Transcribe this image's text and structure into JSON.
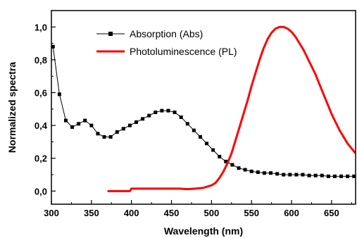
{
  "chart_data": {
    "type": "line",
    "xlabel": "Wavelength (nm)",
    "ylabel": "Normalized spectra",
    "xlim": [
      300,
      680
    ],
    "ylim": [
      -0.08,
      1.1
    ],
    "x_ticks": [
      300,
      350,
      400,
      450,
      500,
      550,
      600,
      650
    ],
    "x_tick_labels": [
      "300",
      "350",
      "400",
      "450",
      "500",
      "550",
      "600",
      "650"
    ],
    "y_ticks": [
      0.0,
      0.2,
      0.4,
      0.6,
      0.8,
      1.0
    ],
    "y_tick_labels": [
      "0,0",
      "0,2",
      "0,4",
      "0,6",
      "0,8",
      "1,0"
    ],
    "grid": false,
    "legend_position": "top-center",
    "series": [
      {
        "name": "Absorption (Abs)",
        "color": "#000000",
        "marker": "square",
        "x": [
          302,
          310,
          318,
          326,
          334,
          342,
          350,
          358,
          366,
          374,
          382,
          390,
          398,
          406,
          414,
          422,
          430,
          438,
          446,
          454,
          462,
          470,
          478,
          486,
          494,
          502,
          510,
          518,
          526,
          534,
          542,
          550,
          558,
          566,
          574,
          582,
          590,
          598,
          606,
          614,
          622,
          630,
          638,
          646,
          654,
          662,
          670,
          678
        ],
        "y": [
          0.88,
          0.59,
          0.43,
          0.39,
          0.41,
          0.43,
          0.4,
          0.35,
          0.33,
          0.33,
          0.36,
          0.38,
          0.4,
          0.42,
          0.44,
          0.46,
          0.48,
          0.49,
          0.49,
          0.48,
          0.45,
          0.41,
          0.37,
          0.33,
          0.29,
          0.25,
          0.21,
          0.18,
          0.16,
          0.14,
          0.13,
          0.12,
          0.115,
          0.11,
          0.11,
          0.105,
          0.1,
          0.1,
          0.1,
          0.1,
          0.095,
          0.095,
          0.095,
          0.09,
          0.09,
          0.09,
          0.09,
          0.09
        ]
      },
      {
        "name": "Photoluminescence (PL)",
        "color": "#ff0000",
        "marker": "none",
        "x": [
          370,
          385,
          398,
          400,
          410,
          420,
          440,
          460,
          470,
          480,
          490,
          500,
          505,
          510,
          515,
          520,
          525,
          530,
          535,
          540,
          545,
          550,
          555,
          560,
          565,
          570,
          575,
          580,
          585,
          590,
          595,
          600,
          605,
          610,
          615,
          620,
          625,
          630,
          635,
          640,
          645,
          650,
          655,
          660,
          665,
          670,
          675,
          680
        ],
        "y": [
          0.0,
          0.0,
          0.0,
          0.015,
          0.015,
          0.015,
          0.015,
          0.015,
          0.012,
          0.015,
          0.02,
          0.035,
          0.05,
          0.08,
          0.12,
          0.17,
          0.23,
          0.31,
          0.39,
          0.47,
          0.55,
          0.64,
          0.72,
          0.8,
          0.87,
          0.925,
          0.965,
          0.99,
          1.0,
          1.0,
          0.99,
          0.97,
          0.94,
          0.9,
          0.86,
          0.81,
          0.76,
          0.71,
          0.65,
          0.59,
          0.53,
          0.47,
          0.42,
          0.37,
          0.33,
          0.29,
          0.26,
          0.23
        ]
      }
    ]
  }
}
